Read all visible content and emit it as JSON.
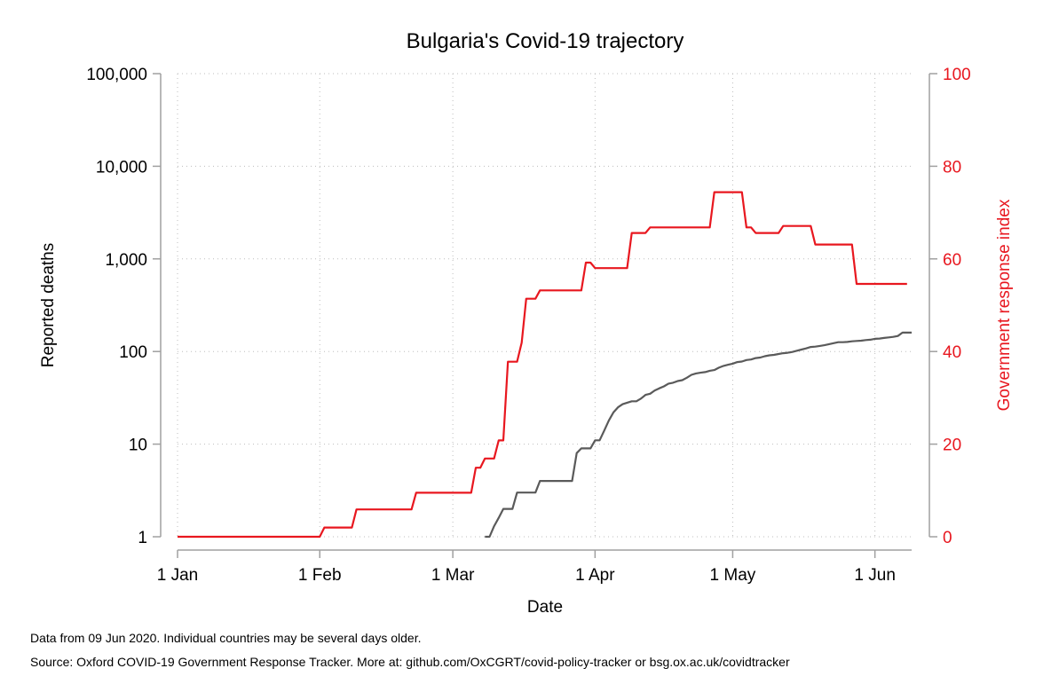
{
  "chart_data": {
    "type": "line",
    "title": "Bulgaria's Covid-19 trajectory",
    "xlabel": "Date",
    "ylabel_left": "Reported deaths",
    "ylabel_right": "Government response index",
    "x_tick_labels": [
      "1 Jan",
      "1 Feb",
      "1 Mar",
      "1 Apr",
      "1 May",
      "1 Jun"
    ],
    "x_tick_dates": [
      "2020-01-01",
      "2020-02-01",
      "2020-03-01",
      "2020-04-01",
      "2020-05-01",
      "2020-06-01"
    ],
    "xlim": [
      "2020-01-01",
      "2020-06-09"
    ],
    "y_left_scale": "log",
    "y_left_ticks": [
      1,
      10,
      100,
      1000,
      10000,
      100000
    ],
    "y_left_tick_labels": [
      "1",
      "10",
      "100",
      "1,000",
      "10,000",
      "100,000"
    ],
    "y_left_lim": [
      1,
      100000
    ],
    "y_right_ticks": [
      0,
      20,
      40,
      60,
      80,
      100
    ],
    "y_right_tick_labels": [
      "0",
      "20",
      "40",
      "60",
      "80",
      "100"
    ],
    "y_right_lim": [
      0,
      100
    ],
    "grid": true,
    "colors": {
      "deaths": "#5a5a5a",
      "response": "#e8171f",
      "right_axis_text": "#e8171f",
      "axis": "#a0a0a0"
    },
    "series": [
      {
        "axis": "left",
        "points": [
          [
            "2020-03-08",
            1
          ],
          [
            "2020-03-09",
            1
          ],
          [
            "2020-03-10",
            1.3
          ],
          [
            "2020-03-11",
            1.6
          ],
          [
            "2020-03-12",
            2
          ],
          [
            "2020-03-14",
            2
          ],
          [
            "2020-03-15",
            3
          ],
          [
            "2020-03-19",
            3
          ],
          [
            "2020-03-20",
            4
          ],
          [
            "2020-03-27",
            4
          ],
          [
            "2020-03-28",
            8
          ],
          [
            "2020-03-29",
            9
          ],
          [
            "2020-03-31",
            9
          ],
          [
            "2020-04-01",
            11
          ],
          [
            "2020-04-02",
            11
          ],
          [
            "2020-04-03",
            14
          ],
          [
            "2020-04-04",
            18
          ],
          [
            "2020-04-05",
            22
          ],
          [
            "2020-04-06",
            25
          ],
          [
            "2020-04-07",
            27
          ],
          [
            "2020-04-08",
            28
          ],
          [
            "2020-04-09",
            29
          ],
          [
            "2020-04-10",
            29
          ],
          [
            "2020-04-11",
            31
          ],
          [
            "2020-04-12",
            34
          ],
          [
            "2020-04-13",
            35
          ],
          [
            "2020-04-14",
            38
          ],
          [
            "2020-04-15",
            40
          ],
          [
            "2020-04-16",
            42
          ],
          [
            "2020-04-17",
            45
          ],
          [
            "2020-04-18",
            46
          ],
          [
            "2020-04-19",
            48
          ],
          [
            "2020-04-20",
            49
          ],
          [
            "2020-04-21",
            52
          ],
          [
            "2020-04-22",
            56
          ],
          [
            "2020-04-23",
            58
          ],
          [
            "2020-04-24",
            59
          ],
          [
            "2020-04-25",
            60
          ],
          [
            "2020-04-26",
            62
          ],
          [
            "2020-04-27",
            63
          ],
          [
            "2020-04-28",
            67
          ],
          [
            "2020-04-29",
            70
          ],
          [
            "2020-04-30",
            72
          ],
          [
            "2020-05-01",
            74
          ],
          [
            "2020-05-02",
            77
          ],
          [
            "2020-05-03",
            78
          ],
          [
            "2020-05-04",
            81
          ],
          [
            "2020-05-05",
            82
          ],
          [
            "2020-05-06",
            85
          ],
          [
            "2020-05-07",
            86
          ],
          [
            "2020-05-08",
            89
          ],
          [
            "2020-05-09",
            91
          ],
          [
            "2020-05-10",
            92
          ],
          [
            "2020-05-11",
            94
          ],
          [
            "2020-05-12",
            96
          ],
          [
            "2020-05-13",
            97
          ],
          [
            "2020-05-14",
            99
          ],
          [
            "2020-05-15",
            102
          ],
          [
            "2020-05-16",
            105
          ],
          [
            "2020-05-17",
            108
          ],
          [
            "2020-05-18",
            112
          ],
          [
            "2020-05-19",
            113
          ],
          [
            "2020-05-20",
            115
          ],
          [
            "2020-05-21",
            117
          ],
          [
            "2020-05-22",
            120
          ],
          [
            "2020-05-23",
            123
          ],
          [
            "2020-05-24",
            126
          ],
          [
            "2020-05-25",
            126
          ],
          [
            "2020-05-26",
            127
          ],
          [
            "2020-05-27",
            129
          ],
          [
            "2020-05-28",
            130
          ],
          [
            "2020-05-29",
            131
          ],
          [
            "2020-05-30",
            133
          ],
          [
            "2020-05-31",
            134
          ],
          [
            "2020-06-01",
            137
          ],
          [
            "2020-06-02",
            138
          ],
          [
            "2020-06-03",
            140
          ],
          [
            "2020-06-04",
            142
          ],
          [
            "2020-06-05",
            144
          ],
          [
            "2020-06-06",
            147
          ],
          [
            "2020-06-07",
            160
          ],
          [
            "2020-06-09",
            160
          ]
        ]
      },
      {
        "axis": "right",
        "points": [
          [
            "2020-01-01",
            0
          ],
          [
            "2020-02-01",
            0
          ],
          [
            "2020-02-02",
            2
          ],
          [
            "2020-02-08",
            2
          ],
          [
            "2020-02-09",
            5.9
          ],
          [
            "2020-02-21",
            5.9
          ],
          [
            "2020-02-22",
            9.5
          ],
          [
            "2020-03-05",
            9.5
          ],
          [
            "2020-03-06",
            14.9
          ],
          [
            "2020-03-07",
            14.9
          ],
          [
            "2020-03-08",
            16.9
          ],
          [
            "2020-03-10",
            16.9
          ],
          [
            "2020-03-11",
            20.8
          ],
          [
            "2020-03-12",
            20.8
          ],
          [
            "2020-03-13",
            37.8
          ],
          [
            "2020-03-15",
            37.8
          ],
          [
            "2020-03-16",
            41.9
          ],
          [
            "2020-03-17",
            51.4
          ],
          [
            "2020-03-19",
            51.4
          ],
          [
            "2020-03-20",
            53.2
          ],
          [
            "2020-03-29",
            53.2
          ],
          [
            "2020-03-30",
            59.2
          ],
          [
            "2020-03-31",
            59.2
          ],
          [
            "2020-04-01",
            58
          ],
          [
            "2020-04-08",
            58
          ],
          [
            "2020-04-09",
            65.6
          ],
          [
            "2020-04-12",
            65.6
          ],
          [
            "2020-04-13",
            66.8
          ],
          [
            "2020-04-26",
            66.8
          ],
          [
            "2020-04-27",
            74.4
          ],
          [
            "2020-05-03",
            74.4
          ],
          [
            "2020-05-04",
            66.8
          ],
          [
            "2020-05-05",
            66.8
          ],
          [
            "2020-05-06",
            65.6
          ],
          [
            "2020-05-11",
            65.6
          ],
          [
            "2020-05-12",
            67.1
          ],
          [
            "2020-05-18",
            67.1
          ],
          [
            "2020-05-19",
            63.1
          ],
          [
            "2020-05-27",
            63.1
          ],
          [
            "2020-05-28",
            54.6
          ],
          [
            "2020-06-08",
            54.6
          ]
        ]
      }
    ]
  },
  "footnotes": {
    "line1": "Data from 09 Jun 2020. Individual countries may be several days older.",
    "line2": "Source: Oxford COVID-19 Government Response Tracker. More at: github.com/OxCGRT/covid-policy-tracker or bsg.ox.ac.uk/covidtracker"
  }
}
